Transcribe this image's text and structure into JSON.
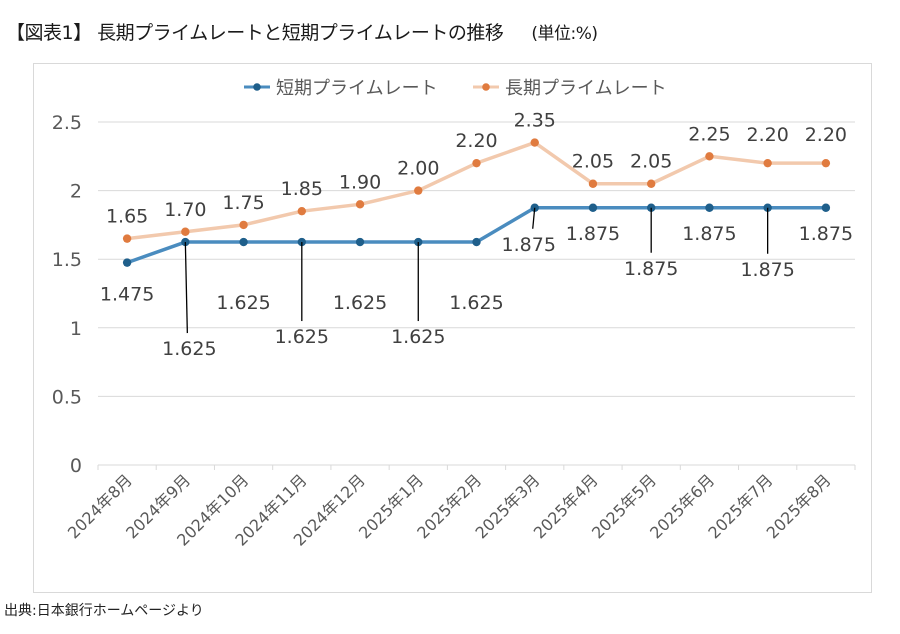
{
  "page": {
    "title": "【図表1】 長期プライムレートと短期プライムレートの推移",
    "unit": "(単位:%)",
    "source": "出典:日本銀行ホームページより"
  },
  "colors": {
    "short_line": "#4a8cbf",
    "short_marker": "#1f5f8b",
    "long_line": "#f2c9ad",
    "long_marker": "#e07b3f",
    "grid": "#d9d9d9",
    "text": "#595959"
  },
  "chart_data": {
    "type": "line",
    "title": "",
    "xlabel": "",
    "ylabel": "",
    "ylim": [
      0,
      2.5
    ],
    "yticks": [
      "0",
      "0.5",
      "1",
      "1.5",
      "2",
      "2.5"
    ],
    "grid": true,
    "legend_position": "top-center",
    "categories": [
      "2024年8月",
      "2024年9月",
      "2024年10月",
      "2024年11月",
      "2024年12月",
      "2025年1月",
      "2025年2月",
      "2025年3月",
      "2025年4月",
      "2025年5月",
      "2025年6月",
      "2025年7月",
      "2025年8月"
    ],
    "series": [
      {
        "name": "短期プライムレート",
        "values": [
          1.475,
          1.625,
          1.625,
          1.625,
          1.625,
          1.625,
          1.625,
          1.875,
          1.875,
          1.875,
          1.875,
          1.875,
          1.875
        ],
        "labels": [
          "1.475",
          "1.625",
          "1.625",
          "1.625",
          "1.625",
          "1.625",
          "1.625",
          "1.875",
          "1.875",
          "1.875",
          "1.875",
          "1.875",
          "1.875"
        ]
      },
      {
        "name": "長期プライムレート",
        "values": [
          1.65,
          1.7,
          1.75,
          1.85,
          1.9,
          2.0,
          2.2,
          2.35,
          2.05,
          2.05,
          2.25,
          2.2,
          2.2
        ],
        "labels": [
          "1.65",
          "1.70",
          "1.75",
          "1.85",
          "1.90",
          "2.00",
          "2.20",
          "2.35",
          "2.05",
          "2.05",
          "2.25",
          "2.20",
          "2.20"
        ]
      }
    ]
  }
}
